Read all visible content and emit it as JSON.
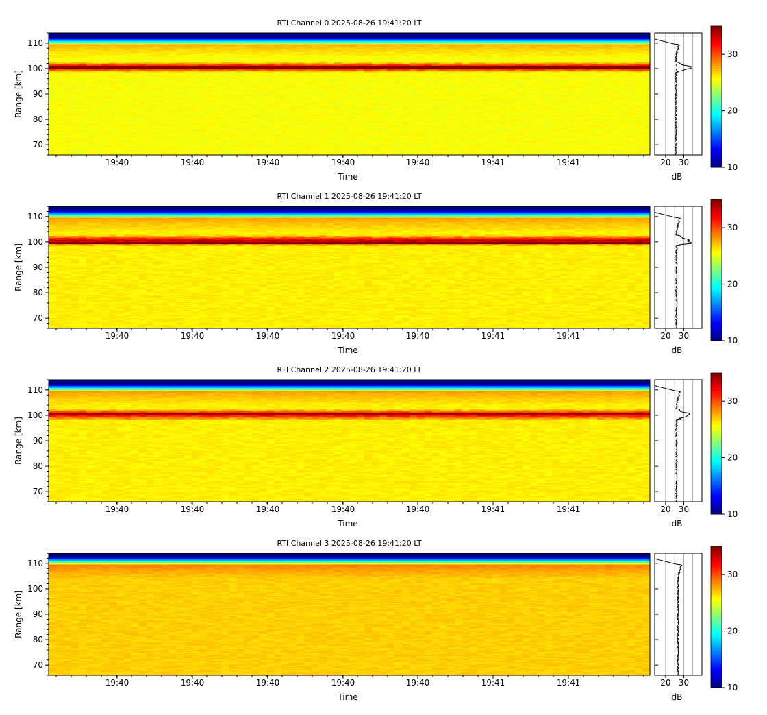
{
  "chart_data": [
    {
      "type": "heatmap",
      "title": "RTI Channel 0 2025-08-26 19:41:20 LT",
      "xlabel": "Time",
      "ylabel": "Range [km]",
      "x_tick_labels": [
        "19:40",
        "19:40",
        "19:40",
        "19:40",
        "19:40",
        "19:41",
        "19:41"
      ],
      "ylim": [
        66,
        114
      ],
      "y_ticks": [
        70,
        80,
        90,
        100,
        110
      ],
      "colorbar": {
        "range": [
          10,
          35
        ],
        "ticks": [
          10,
          20,
          30
        ],
        "colormap": "jet"
      },
      "profile": {
        "xlabel": "dB",
        "x_ticks": [
          20,
          30
        ],
        "xlim": [
          14,
          40
        ]
      },
      "features": {
        "top_edge_km": 109.5,
        "layer_center_km": 100.5,
        "layer_halfwidth_km": 2.0,
        "layer_peak_db": 34,
        "background_db": 25.5,
        "dark_line_km": 100.3
      }
    },
    {
      "type": "heatmap",
      "title": "RTI Channel 1 2025-08-26 19:41:20 LT",
      "xlabel": "Time",
      "ylabel": "Range [km]",
      "x_tick_labels": [
        "19:40",
        "19:40",
        "19:40",
        "19:40",
        "19:40",
        "19:41",
        "19:41"
      ],
      "ylim": [
        66,
        114
      ],
      "y_ticks": [
        70,
        80,
        90,
        100,
        110
      ],
      "colorbar": {
        "range": [
          10,
          35
        ],
        "ticks": [
          10,
          20,
          30
        ],
        "colormap": "jet"
      },
      "profile": {
        "xlabel": "dB",
        "x_ticks": [
          20,
          30
        ],
        "xlim": [
          14,
          40
        ]
      },
      "features": {
        "top_edge_km": 109.5,
        "layer_center_km": 100.5,
        "layer_halfwidth_km": 2.2,
        "layer_peak_db": 34,
        "background_db": 26.0,
        "dark_line_km": 99.5
      }
    },
    {
      "type": "heatmap",
      "title": "RTI Channel 2 2025-08-26 19:41:20 LT",
      "xlabel": "Time",
      "ylabel": "Range [km]",
      "x_tick_labels": [
        "19:40",
        "19:40",
        "19:40",
        "19:40",
        "19:40",
        "19:41",
        "19:41"
      ],
      "ylim": [
        66,
        114
      ],
      "y_ticks": [
        70,
        80,
        90,
        100,
        110
      ],
      "colorbar": {
        "range": [
          10,
          35
        ],
        "ticks": [
          10,
          20,
          30
        ],
        "colormap": "jet"
      },
      "profile": {
        "xlabel": "dB",
        "x_ticks": [
          20,
          30
        ],
        "xlim": [
          14,
          40
        ]
      },
      "features": {
        "top_edge_km": 109.5,
        "layer_center_km": 100.3,
        "layer_halfwidth_km": 2.2,
        "layer_peak_db": 33,
        "background_db": 26.0,
        "dark_line_km": 100.6
      }
    },
    {
      "type": "heatmap",
      "title": "RTI Channel 3 2025-08-26 19:41:20 LT",
      "xlabel": "Time",
      "ylabel": "Range [km]",
      "x_tick_labels": [
        "19:40",
        "19:40",
        "19:40",
        "19:40",
        "19:40",
        "19:41",
        "19:41"
      ],
      "ylim": [
        66,
        114
      ],
      "y_ticks": [
        70,
        80,
        90,
        100,
        110
      ],
      "colorbar": {
        "range": [
          10,
          35
        ],
        "ticks": [
          10,
          20,
          30
        ],
        "colormap": "jet"
      },
      "profile": {
        "xlabel": "dB",
        "x_ticks": [
          20,
          30
        ],
        "xlim": [
          14,
          40
        ]
      },
      "features": {
        "top_edge_km": 109.5,
        "layer_center_km": null,
        "layer_halfwidth_km": 0,
        "layer_peak_db": null,
        "background_db": 26.8,
        "dark_line_km": null
      }
    }
  ]
}
